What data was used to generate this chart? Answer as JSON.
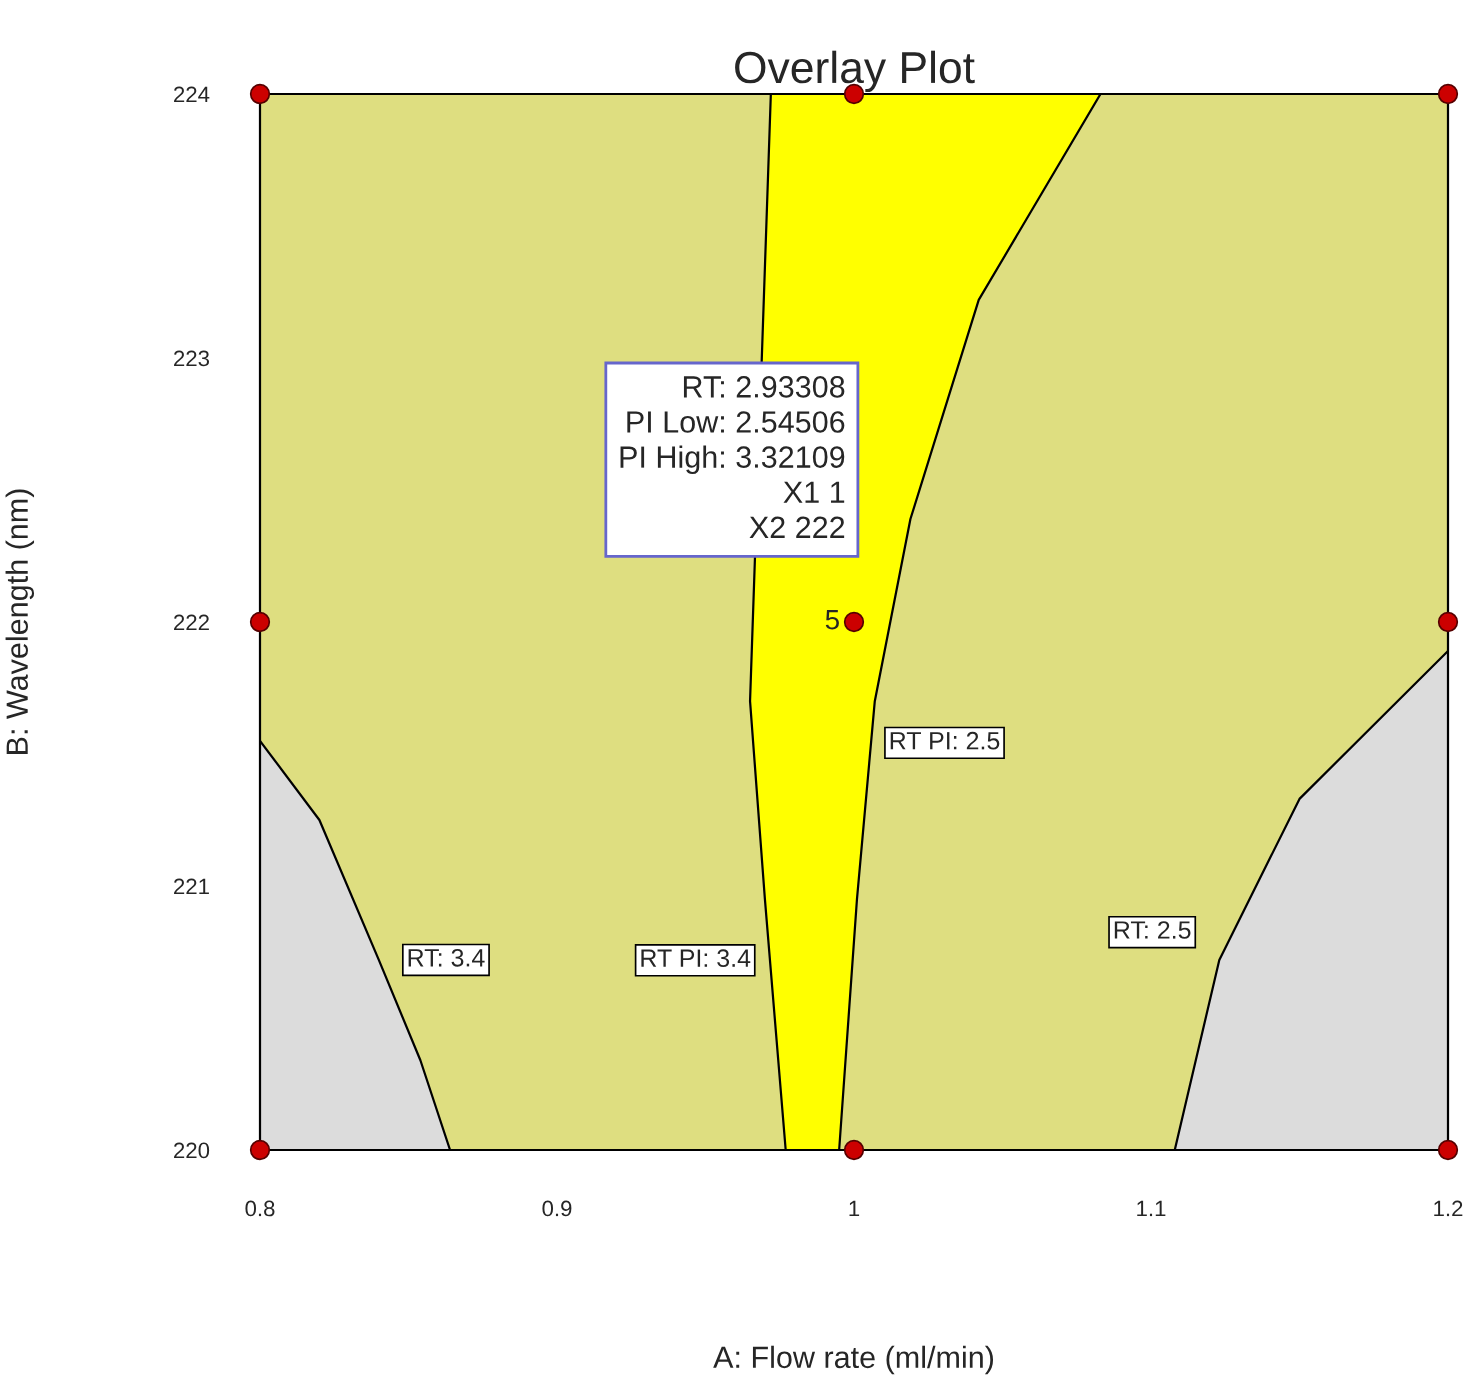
{
  "chart_data": {
    "type": "line",
    "title": "Overlay Plot",
    "xlabel": "A: Flow rate (ml/min)",
    "ylabel": "B: Wavelength (nm)",
    "xlim": [
      0.8,
      1.2
    ],
    "ylim": [
      220,
      224
    ],
    "xticks": [
      0.8,
      0.9,
      1,
      1.1,
      1.2
    ],
    "yticks": [
      220,
      221,
      222,
      223,
      224
    ],
    "grid": false,
    "legend": false,
    "line_style": "solid",
    "series": [
      {
        "name": "RT: 3.4",
        "color": "#000000",
        "x": [
          0.8,
          0.82,
          0.84,
          0.854,
          0.864
        ],
        "values": [
          221.55,
          221.25,
          220.72,
          220.34,
          220.0
        ]
      },
      {
        "name": "RT: 2.5",
        "color": "#000000",
        "x": [
          1.2,
          1.15,
          1.123,
          1.108
        ],
        "values": [
          221.89,
          221.33,
          220.72,
          220.0
        ]
      },
      {
        "name": "RT PI: 3.4",
        "color": "#000000",
        "x": [
          0.972,
          null,
          null,
          0.965,
          0.97,
          0.977
        ],
        "values": [
          224.0,
          null,
          null,
          221.7,
          220.95,
          220.0
        ]
      },
      {
        "name": "RT PI: 2.5",
        "color": "#000000",
        "x": [
          1.083,
          1.042,
          1.019,
          1.007,
          1.001,
          0.995
        ],
        "values": [
          224.0,
          223.22,
          222.39,
          221.7,
          220.95,
          220.0
        ]
      },
      {
        "type": "scatter",
        "marker": "circle",
        "color": "#cc0000",
        "x": [
          0.8,
          1,
          1.2,
          0.8,
          1,
          1.2,
          0.8,
          1,
          1.2
        ],
        "values": [
          220,
          220,
          220,
          222,
          222,
          222,
          224,
          224,
          224
        ]
      }
    ],
    "annotations": [
      {
        "text": "RT: 2.93308\nPI Low: 2.54506\nPI High: 3.32109\nX1 1\nX2 222",
        "x": 1,
        "y": 222
      },
      {
        "text": "5",
        "x": 1,
        "y": 222
      }
    ]
  }
}
